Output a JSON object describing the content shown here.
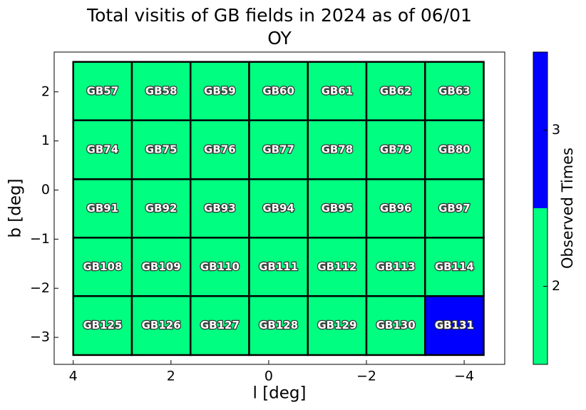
{
  "chart_data": {
    "type": "field-grid",
    "title": "Total visitis of GB fields in 2024 as of 06/01",
    "subtitle": "OY",
    "xlabel": "l [deg]",
    "ylabel": "b [deg]",
    "xlim": [
      4.39,
      -4.83
    ],
    "ylim": [
      -3.55,
      2.81
    ],
    "xticks": [
      4,
      2,
      0,
      {
        "value": -2,
        "label": "−2"
      },
      {
        "value": -4,
        "label": "−4"
      }
    ],
    "yticks": [
      2,
      1,
      0,
      {
        "value": -1,
        "label": "−1"
      },
      {
        "value": -2,
        "label": "−2"
      },
      {
        "value": -3,
        "label": "−3"
      }
    ],
    "x_edges": [
      4.0,
      2.8,
      1.6,
      0.4,
      -0.8,
      -2.0,
      -3.2,
      -4.4
    ],
    "y_edges": [
      2.61,
      1.42,
      0.22,
      -0.97,
      -2.16,
      -3.36
    ],
    "labels": [
      [
        "GB57",
        "GB58",
        "GB59",
        "GB60",
        "GB61",
        "GB62",
        "GB63"
      ],
      [
        "GB74",
        "GB75",
        "GB76",
        "GB77",
        "GB78",
        "GB79",
        "GB80"
      ],
      [
        "GB91",
        "GB92",
        "GB93",
        "GB94",
        "GB95",
        "GB96",
        "GB97"
      ],
      [
        "GB108",
        "GB109",
        "GB110",
        "GB111",
        "GB112",
        "GB113",
        "GB114"
      ],
      [
        "GB125",
        "GB126",
        "GB127",
        "GB128",
        "GB129",
        "GB130",
        "GB131"
      ]
    ],
    "values": [
      [
        2,
        2,
        2,
        2,
        2,
        2,
        2
      ],
      [
        2,
        2,
        2,
        2,
        2,
        2,
        2
      ],
      [
        2,
        2,
        2,
        2,
        2,
        2,
        2
      ],
      [
        2,
        2,
        2,
        2,
        2,
        2,
        2
      ],
      [
        2,
        2,
        2,
        2,
        2,
        2,
        3
      ]
    ],
    "colorbar": {
      "label": "Observed Times",
      "lim": [
        1.5,
        3.5
      ],
      "ticks": [
        2,
        3
      ],
      "boundaries": [
        1.5,
        2.5,
        3.5
      ],
      "colors": [
        "#00ff80",
        "#0000ff"
      ]
    }
  }
}
